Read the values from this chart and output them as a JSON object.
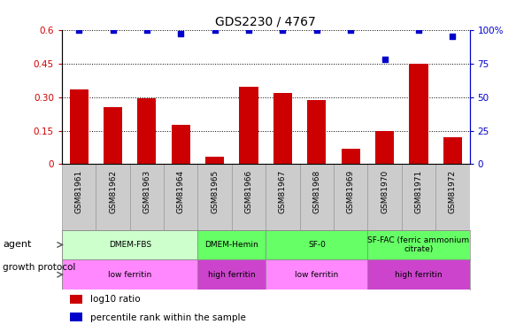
{
  "title": "GDS2230 / 4767",
  "samples": [
    "GSM81961",
    "GSM81962",
    "GSM81963",
    "GSM81964",
    "GSM81965",
    "GSM81966",
    "GSM81967",
    "GSM81968",
    "GSM81969",
    "GSM81970",
    "GSM81971",
    "GSM81972"
  ],
  "log10_ratio": [
    0.335,
    0.255,
    0.295,
    0.175,
    0.035,
    0.345,
    0.32,
    0.285,
    0.07,
    0.15,
    0.45,
    0.12
  ],
  "percentile_rank": [
    100,
    100,
    100,
    97,
    100,
    100,
    100,
    100,
    100,
    78,
    100,
    95
  ],
  "bar_color": "#cc0000",
  "dot_color": "#0000cc",
  "ylim_left": [
    0,
    0.6
  ],
  "ylim_right": [
    0,
    100
  ],
  "yticks_left": [
    0,
    0.15,
    0.3,
    0.45,
    0.6
  ],
  "yticks_right": [
    0,
    25,
    50,
    75,
    100
  ],
  "ytick_labels_left": [
    "0",
    "0.15",
    "0.30",
    "0.45",
    "0.6"
  ],
  "ytick_labels_right": [
    "0",
    "25",
    "50",
    "75",
    "100%"
  ],
  "agent_spans": [
    {
      "label": "DMEM-FBS",
      "cols": [
        0,
        1,
        2,
        3
      ],
      "color": "#ccffcc"
    },
    {
      "label": "DMEM-Hemin",
      "cols": [
        4,
        5
      ],
      "color": "#66ff66"
    },
    {
      "label": "SF-0",
      "cols": [
        6,
        7,
        8
      ],
      "color": "#66ff66"
    },
    {
      "label": "SF-FAC (ferric ammonium\ncitrate)",
      "cols": [
        9,
        10,
        11
      ],
      "color": "#66ff66"
    }
  ],
  "growth_spans": [
    {
      "label": "low ferritin",
      "cols": [
        0,
        1,
        2,
        3
      ],
      "color": "#ff88ff"
    },
    {
      "label": "high ferritin",
      "cols": [
        4,
        5
      ],
      "color": "#cc44cc"
    },
    {
      "label": "low ferritin",
      "cols": [
        6,
        7,
        8
      ],
      "color": "#ff88ff"
    },
    {
      "label": "high ferritin",
      "cols": [
        9,
        10,
        11
      ],
      "color": "#cc44cc"
    }
  ],
  "legend_bar_label": "log10 ratio",
  "legend_dot_label": "percentile rank within the sample",
  "sample_bg_color": "#cccccc",
  "sample_border_color": "#999999"
}
